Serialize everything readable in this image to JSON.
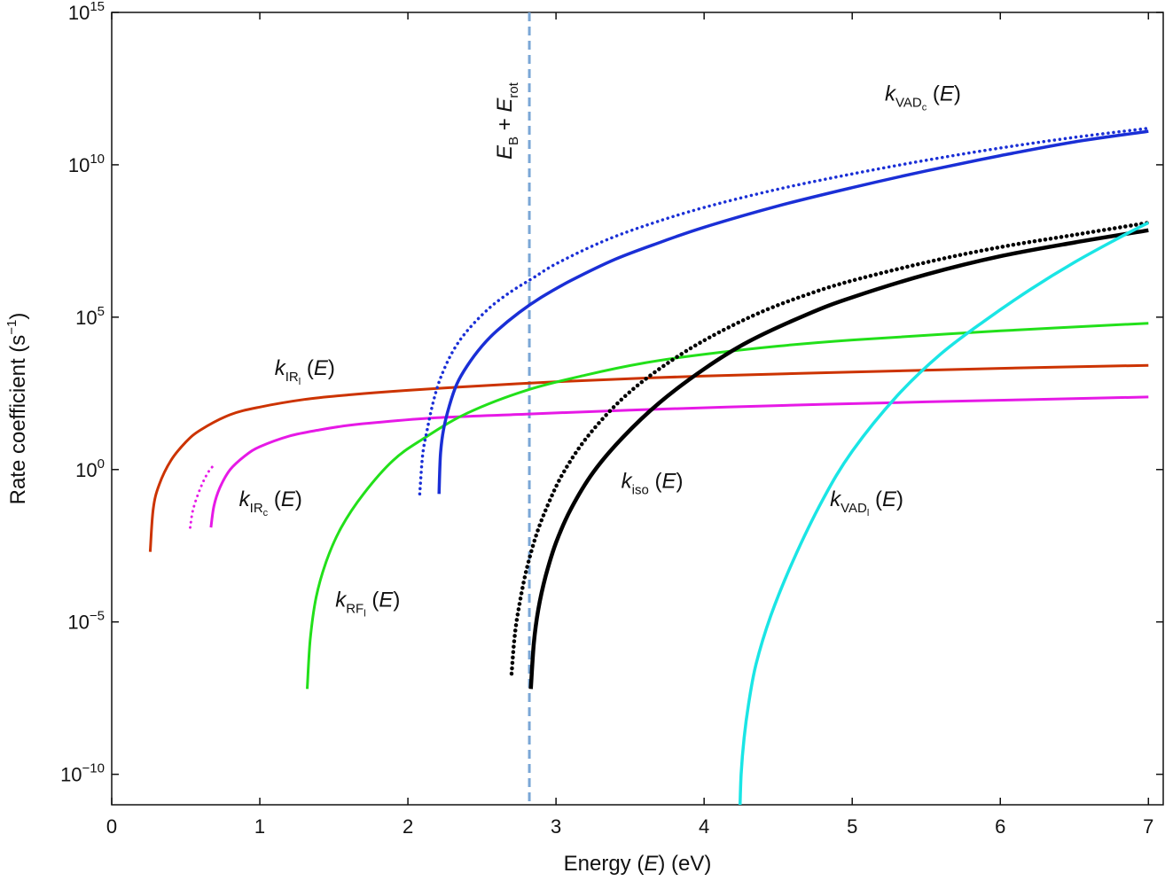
{
  "chart_data": {
    "type": "line",
    "title": "",
    "xlabel": "Energy (E) (eV)",
    "xlabel_parts": [
      "Energy (",
      "E",
      ") (eV)"
    ],
    "ylabel": "Rate coefficient (s−1)",
    "ylabel_parts": [
      "Rate coefficient (s",
      "−1",
      ")"
    ],
    "xlim": [
      0,
      7.1
    ],
    "ylim_log10": [
      -11,
      15
    ],
    "y_scale": "log",
    "grid": false,
    "x_ticks": [
      0,
      1,
      2,
      3,
      4,
      5,
      6,
      7
    ],
    "x_tick_labels": [
      "0",
      "1",
      "2",
      "3",
      "4",
      "5",
      "6",
      "7"
    ],
    "y_ticks_log10": [
      15,
      10,
      5,
      0,
      -5,
      -10
    ],
    "y_tick_labels": [
      {
        "base": "10",
        "exp": "15"
      },
      {
        "base": "10",
        "exp": "10"
      },
      {
        "base": "10",
        "exp": "5"
      },
      {
        "base": "10",
        "exp": "0"
      },
      {
        "base": "10",
        "exp": "−5"
      },
      {
        "base": "10",
        "exp": "−10"
      }
    ],
    "vline": {
      "x": 2.82,
      "color": "#7aa6d6",
      "label_main": "E",
      "label_sub1": "B",
      "label_plus": " + ",
      "label_main2": "E",
      "label_sub2": "rot"
    },
    "series": [
      {
        "name": "kIR_l",
        "color": "#cc3300",
        "style": "solid",
        "width": 3,
        "x": [
          0.26,
          0.28,
          0.32,
          0.4,
          0.5,
          0.6,
          0.8,
          1.0,
          1.3,
          1.6,
          2.0,
          2.5,
          3.0,
          3.5,
          4.0,
          5.0,
          6.0,
          7.0
        ],
        "log_y": [
          -2.7,
          -1.3,
          -0.5,
          0.3,
          0.9,
          1.3,
          1.8,
          2.05,
          2.3,
          2.45,
          2.6,
          2.75,
          2.88,
          2.98,
          3.07,
          3.2,
          3.32,
          3.42
        ]
      },
      {
        "name": "kIR_c dotted",
        "color": "#e619e6",
        "style": "dotted",
        "width": 3,
        "x": [
          0.53,
          0.55,
          0.6,
          0.65,
          0.7
        ],
        "log_y": [
          -1.9,
          -1.3,
          -0.6,
          -0.1,
          0.2
        ]
      },
      {
        "name": "kIR_c",
        "color": "#e619e6",
        "style": "solid",
        "width": 3,
        "x": [
          0.67,
          0.69,
          0.73,
          0.8,
          0.9,
          1.0,
          1.2,
          1.4,
          1.6,
          1.8,
          2.2,
          2.8,
          3.5,
          4.5,
          5.5,
          7.0
        ],
        "log_y": [
          -1.9,
          -1.2,
          -0.6,
          0.0,
          0.45,
          0.75,
          1.1,
          1.3,
          1.45,
          1.55,
          1.7,
          1.82,
          1.95,
          2.1,
          2.22,
          2.38
        ]
      },
      {
        "name": "kRF_l",
        "color": "#22e01a",
        "style": "solid",
        "width": 3,
        "x": [
          1.32,
          1.34,
          1.38,
          1.45,
          1.55,
          1.7,
          1.9,
          2.1,
          2.4,
          2.8,
          3.2,
          3.6,
          4.0,
          4.5,
          5.0,
          6.0,
          7.0
        ],
        "log_y": [
          -7.2,
          -5.6,
          -4.2,
          -3.0,
          -1.9,
          -0.8,
          0.3,
          1.0,
          1.85,
          2.6,
          3.1,
          3.5,
          3.78,
          4.05,
          4.25,
          4.55,
          4.8
        ]
      },
      {
        "name": "kVAD_c dotted",
        "color": "#1a2fd6",
        "style": "dotted",
        "width": 3.5,
        "x": [
          2.08,
          2.1,
          2.13,
          2.17,
          2.22,
          2.3,
          2.4,
          2.55,
          2.7,
          2.85,
          3.0,
          3.3,
          3.6,
          4.0,
          4.5,
          5.0,
          5.5,
          6.0,
          6.5,
          7.0
        ],
        "log_y": [
          -0.8,
          0.5,
          1.3,
          2.2,
          3.0,
          3.85,
          4.55,
          5.3,
          5.85,
          6.3,
          6.75,
          7.45,
          8.0,
          8.6,
          9.2,
          9.7,
          10.15,
          10.55,
          10.9,
          11.2
        ]
      },
      {
        "name": "kVAD_c",
        "color": "#1a2fd6",
        "style": "solid",
        "width": 3.5,
        "x": [
          2.21,
          2.22,
          2.24,
          2.28,
          2.33,
          2.4,
          2.5,
          2.6,
          2.75,
          2.9,
          3.1,
          3.4,
          3.7,
          4.0,
          4.5,
          5.0,
          5.5,
          6.0,
          6.5,
          7.0
        ],
        "log_y": [
          -0.8,
          0.5,
          1.3,
          2.1,
          2.8,
          3.4,
          4.05,
          4.55,
          5.15,
          5.65,
          6.2,
          6.9,
          7.45,
          7.95,
          8.65,
          9.25,
          9.8,
          10.3,
          10.75,
          11.1
        ]
      },
      {
        "name": "kiso dotted",
        "color": "#000000",
        "style": "dotted",
        "width": 4.5,
        "x": [
          2.7,
          2.72,
          2.75,
          2.8,
          2.87,
          2.95,
          3.05,
          3.2,
          3.4,
          3.6,
          3.85,
          4.1,
          4.4,
          4.7,
          5.0,
          5.5,
          6.0,
          6.5,
          7.0
        ],
        "log_y": [
          -6.7,
          -5.5,
          -4.5,
          -3.3,
          -2.1,
          -1.1,
          -0.1,
          1.0,
          2.1,
          2.95,
          3.8,
          4.5,
          5.2,
          5.75,
          6.2,
          6.8,
          7.3,
          7.7,
          8.1
        ]
      },
      {
        "name": "kiso",
        "color": "#000000",
        "style": "solid",
        "width": 4.5,
        "x": [
          2.83,
          2.85,
          2.88,
          2.93,
          3.0,
          3.1,
          3.25,
          3.45,
          3.7,
          4.0,
          4.3,
          4.7,
          5.0,
          5.5,
          6.0,
          6.5,
          7.0
        ],
        "log_y": [
          -7.2,
          -5.7,
          -4.6,
          -3.5,
          -2.4,
          -1.3,
          -0.1,
          1.05,
          2.2,
          3.3,
          4.2,
          5.1,
          5.65,
          6.4,
          7.0,
          7.45,
          7.85
        ]
      },
      {
        "name": "kVAD_l",
        "color": "#1ae5e5",
        "style": "solid",
        "width": 3.5,
        "x": [
          4.24,
          4.25,
          4.27,
          4.3,
          4.35,
          4.45,
          4.6,
          4.8,
          5.0,
          5.3,
          5.6,
          5.9,
          6.2,
          6.5,
          6.8,
          7.0
        ],
        "log_y": [
          -11.5,
          -10.0,
          -8.8,
          -7.7,
          -6.4,
          -4.8,
          -3.0,
          -1.0,
          0.6,
          2.4,
          3.8,
          4.9,
          5.9,
          6.8,
          7.6,
          8.1
        ]
      }
    ],
    "annotations": [
      {
        "id": "kIRl",
        "k": "k",
        "sub": "IR",
        "subsub": "l",
        "E": "E",
        "x": 1.1,
        "log_y": 3.1
      },
      {
        "id": "kIRc",
        "k": "k",
        "sub": "IR",
        "subsub": "c",
        "E": "E",
        "x": 0.86,
        "log_y": -1.2
      },
      {
        "id": "kRFl",
        "k": "k",
        "sub": "RF",
        "subsub": "l",
        "E": "E",
        "x": 1.51,
        "log_y": -4.5
      },
      {
        "id": "kiso",
        "k": "k",
        "sub": "iso",
        "subsub": "",
        "E": "E",
        "x": 3.44,
        "log_y": -0.6
      },
      {
        "id": "kVADl",
        "k": "k",
        "sub": "VAD",
        "subsub": "l",
        "E": "E",
        "x": 4.85,
        "log_y": -1.2
      },
      {
        "id": "kVADc",
        "k": "k",
        "sub": "VAD",
        "subsub": "c",
        "E": "E",
        "x": 5.22,
        "log_y": 12.1
      }
    ]
  }
}
